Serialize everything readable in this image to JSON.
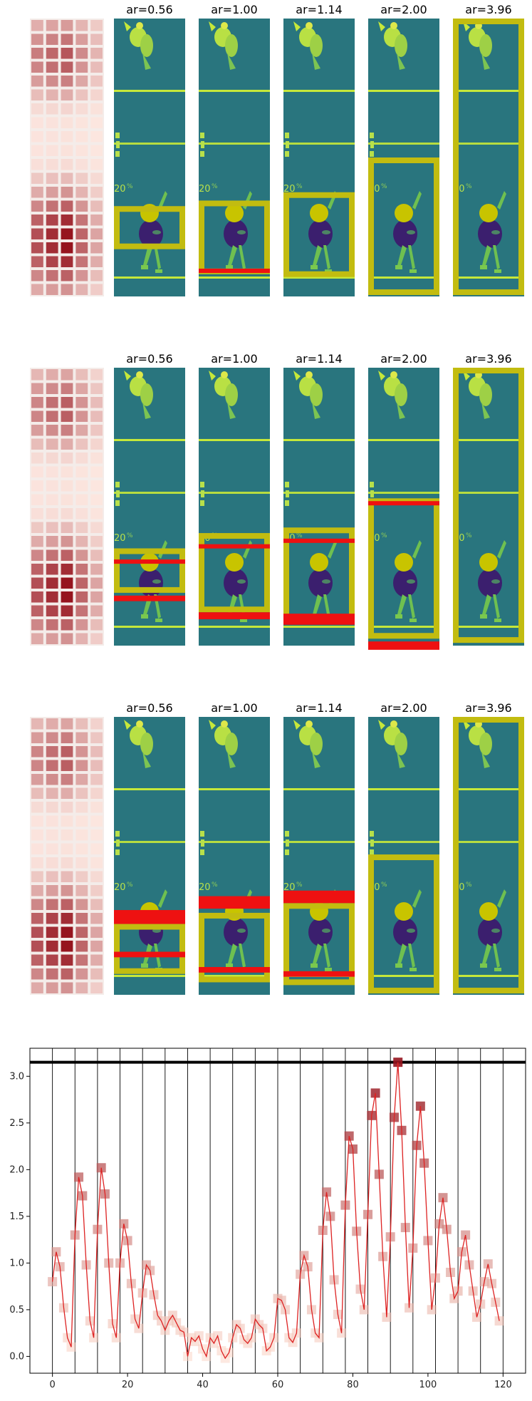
{
  "colors": {
    "frame_bg": "#2c7a82",
    "court_line": "#c6e83a",
    "player_dark": "#3b1f6e",
    "ball": "#c8c400",
    "box_yellow": "#c2bc10",
    "box_red": "#ee1111",
    "series_line": "#dd2222"
  },
  "panel_rows": [
    {
      "titles": [
        "ar=0.56",
        "ar=1.00",
        "ar=1.14",
        "ar=2.00",
        "ar=3.96"
      ],
      "boxes": [
        {
          "yellow": [
            0.675,
            0.83
          ],
          "red": []
        },
        {
          "yellow": [
            0.655,
            0.92
          ],
          "red": [
            [
              0.9,
              0.915
            ]
          ]
        },
        {
          "yellow": [
            0.625,
            0.93
          ],
          "red": []
        },
        {
          "yellow": [
            0.5,
            0.995
          ],
          "red": []
        },
        {
          "yellow": [
            0.0,
            0.995
          ],
          "red": []
        }
      ]
    },
    {
      "titles": [
        "ar=0.56",
        "ar=1.00",
        "ar=1.14",
        "ar=2.00",
        "ar=3.96"
      ],
      "boxes": [
        {
          "yellow": [
            0.65,
            0.81
          ],
          "red": [
            [
              0.69,
              0.705
            ],
            [
              0.82,
              0.84
            ]
          ]
        },
        {
          "yellow": [
            0.595,
            0.88
          ],
          "red": [
            [
              0.635,
              0.65
            ],
            [
              0.88,
              0.905
            ]
          ]
        },
        {
          "yellow": [
            0.575,
            0.915
          ],
          "red": [
            [
              0.615,
              0.63
            ],
            [
              0.885,
              0.925
            ]
          ]
        },
        {
          "yellow": [
            0.47,
            0.975
          ],
          "red": [
            [
              0.48,
              0.495
            ],
            [
              0.985,
              1.015
            ]
          ]
        },
        {
          "yellow": [
            0.0,
            0.99
          ],
          "red": []
        }
      ]
    },
    {
      "titles": [
        "ar=0.56",
        "ar=1.00",
        "ar=1.14",
        "ar=2.00",
        "ar=3.96"
      ],
      "boxes": [
        {
          "yellow": [
            0.745,
            0.925
          ],
          "red": [
            [
              0.695,
              0.745
            ],
            [
              0.845,
              0.865
            ]
          ]
        },
        {
          "yellow": [
            0.705,
            0.955
          ],
          "red": [
            [
              0.645,
              0.69
            ],
            [
              0.9,
              0.92
            ]
          ]
        },
        {
          "yellow": [
            0.67,
            0.965
          ],
          "red": [
            [
              0.625,
              0.67
            ],
            [
              0.915,
              0.935
            ]
          ]
        },
        {
          "yellow": [
            0.495,
            0.995
          ],
          "red": []
        },
        {
          "yellow": [
            0.0,
            0.995
          ],
          "red": []
        }
      ]
    }
  ],
  "chart_data": {
    "type": "line",
    "title": "",
    "xlabel": "",
    "ylabel": "",
    "xlim": [
      -6,
      126
    ],
    "ylim": [
      -0.18,
      3.3
    ],
    "xticks": [
      0,
      20,
      40,
      60,
      80,
      100,
      120
    ],
    "yticks": [
      0.0,
      0.5,
      1.0,
      1.5,
      2.0,
      2.5,
      3.0
    ],
    "tick_labels_x": [
      "0",
      "20",
      "40",
      "60",
      "80",
      "100",
      "120"
    ],
    "tick_labels_y": [
      "0.0",
      "0.5",
      "1.0",
      "1.5",
      "2.0",
      "2.5",
      "3.0"
    ],
    "grid": false,
    "threshold": 3.15,
    "vlines": [
      0,
      6,
      12,
      18,
      24,
      30,
      36,
      42,
      48,
      54,
      60,
      66,
      72,
      78,
      84,
      90,
      96,
      102,
      108,
      114,
      120
    ],
    "x": [
      0,
      1,
      2,
      3,
      4,
      5,
      6,
      7,
      8,
      9,
      10,
      11,
      12,
      13,
      14,
      15,
      16,
      17,
      18,
      19,
      20,
      21,
      22,
      23,
      24,
      25,
      26,
      27,
      28,
      29,
      30,
      31,
      32,
      33,
      34,
      35,
      36,
      37,
      38,
      39,
      40,
      41,
      42,
      43,
      44,
      45,
      46,
      47,
      48,
      49,
      50,
      51,
      52,
      53,
      54,
      55,
      56,
      57,
      58,
      59,
      60,
      61,
      62,
      63,
      64,
      65,
      66,
      67,
      68,
      69,
      70,
      71,
      72,
      73,
      74,
      75,
      76,
      77,
      78,
      79,
      80,
      81,
      82,
      83,
      84,
      85,
      86,
      87,
      88,
      89,
      90,
      91,
      92,
      93,
      94,
      95,
      96,
      97,
      98,
      99,
      100,
      101,
      102,
      103,
      104,
      105,
      106,
      107,
      108,
      109,
      110,
      111,
      112,
      113,
      114,
      115,
      116,
      117,
      118,
      119
    ],
    "y": [
      0.8,
      1.12,
      0.96,
      0.52,
      0.2,
      0.1,
      1.3,
      1.92,
      1.72,
      0.98,
      0.38,
      0.2,
      1.36,
      2.02,
      1.74,
      1.0,
      0.35,
      0.2,
      1.0,
      1.42,
      1.24,
      0.78,
      0.4,
      0.3,
      0.68,
      0.98,
      0.92,
      0.66,
      0.44,
      0.38,
      0.28,
      0.38,
      0.44,
      0.36,
      0.28,
      0.26,
      0.0,
      0.2,
      0.16,
      0.22,
      0.08,
      0.0,
      0.2,
      0.14,
      0.22,
      0.06,
      -0.02,
      0.04,
      0.2,
      0.34,
      0.3,
      0.18,
      0.14,
      0.2,
      0.4,
      0.34,
      0.3,
      0.06,
      0.1,
      0.2,
      0.62,
      0.6,
      0.5,
      0.2,
      0.15,
      0.25,
      0.88,
      1.08,
      0.96,
      0.5,
      0.25,
      0.2,
      1.35,
      1.76,
      1.5,
      0.82,
      0.45,
      0.25,
      1.62,
      2.36,
      2.22,
      1.34,
      0.72,
      0.5,
      1.52,
      2.58,
      2.82,
      1.95,
      1.07,
      0.42,
      1.28,
      2.56,
      3.15,
      2.42,
      1.38,
      0.52,
      1.16,
      2.26,
      2.68,
      2.07,
      1.24,
      0.5,
      0.84,
      1.42,
      1.7,
      1.36,
      0.9,
      0.62,
      0.7,
      1.12,
      1.3,
      0.98,
      0.7,
      0.42,
      0.56,
      0.8,
      0.99,
      0.78,
      0.58,
      0.38
    ]
  }
}
